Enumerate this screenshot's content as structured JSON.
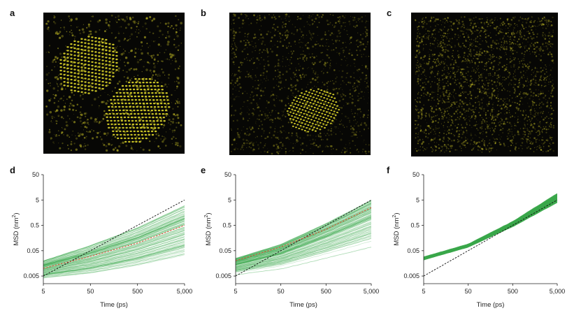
{
  "panel_labels": [
    "a",
    "b",
    "c",
    "d",
    "e",
    "f"
  ],
  "images": [
    {
      "letter": "a",
      "description_color": "#d8cf2a"
    },
    {
      "letter": "b",
      "description_color": "#d8cf2a"
    },
    {
      "letter": "c",
      "description_color": "#d8cf2a"
    }
  ],
  "colors": {
    "particles": "#d4cc28",
    "image_bg": "#070705",
    "trajectories": "#3aa84a",
    "red_dashed": "#e0402a",
    "black_dashed": "#111111"
  },
  "chart_data": [
    {
      "type": "line",
      "panel": "d",
      "xlabel": "Time (ps)",
      "ylabel": "MSD (nm²)",
      "ylabel_text": "MSD (nm",
      "ylabel_sup": "2",
      "ylabel_close": ")",
      "xscale": "log",
      "yscale": "log",
      "xlim": [
        5,
        5000
      ],
      "ylim": [
        0.0025,
        50
      ],
      "xticks": [
        5,
        50,
        500,
        5000
      ],
      "xtick_labels": [
        "5",
        "50",
        "500",
        "5,000"
      ],
      "yticks": [
        0.005,
        0.05,
        0.5,
        5,
        50
      ],
      "ytick_labels": [
        "0.005",
        "0.05",
        "0.5",
        "5",
        "50"
      ],
      "series": [
        {
          "style": "black-dashed",
          "x": [
            5,
            5000
          ],
          "y": [
            0.005,
            5
          ]
        },
        {
          "style": "red-dashed",
          "x": [
            5,
            50,
            500,
            5000
          ],
          "y": [
            0.01,
            0.03,
            0.1,
            0.5
          ]
        },
        {
          "style": "green-bundle-upper",
          "x": [
            5,
            50,
            500,
            5000
          ],
          "y": [
            0.02,
            0.08,
            0.4,
            3
          ]
        },
        {
          "style": "green-bundle-lower",
          "x": [
            5,
            50,
            500,
            5000
          ],
          "y": [
            0.004,
            0.006,
            0.012,
            0.03
          ]
        }
      ]
    },
    {
      "type": "line",
      "panel": "e",
      "xlabel": "Time (ps)",
      "ylabel": "MSD (nm²)",
      "ylabel_text": "MSD (nm",
      "ylabel_sup": "2",
      "ylabel_close": ")",
      "xscale": "log",
      "yscale": "log",
      "xlim": [
        5,
        5000
      ],
      "ylim": [
        0.0025,
        50
      ],
      "xticks": [
        5,
        50,
        500,
        5000
      ],
      "xtick_labels": [
        "5",
        "50",
        "500",
        "5,000"
      ],
      "yticks": [
        0.005,
        0.05,
        0.5,
        5,
        50
      ],
      "ytick_labels": [
        "0.005",
        "0.05",
        "0.5",
        "5",
        "50"
      ],
      "series": [
        {
          "style": "black-dashed",
          "x": [
            5,
            5000
          ],
          "y": [
            0.005,
            5
          ]
        },
        {
          "style": "red-dashed",
          "x": [
            5,
            50,
            500,
            5000
          ],
          "y": [
            0.02,
            0.07,
            0.35,
            2.5
          ]
        },
        {
          "style": "green-bundle-upper",
          "x": [
            5,
            50,
            500,
            5000
          ],
          "y": [
            0.025,
            0.09,
            0.6,
            5
          ]
        },
        {
          "style": "green-bundle-lower",
          "x": [
            5,
            50,
            500,
            5000
          ],
          "y": [
            0.005,
            0.008,
            0.02,
            0.05
          ]
        }
      ]
    },
    {
      "type": "line",
      "panel": "f",
      "xlabel": "Time (ps)",
      "ylabel": "MSD (nm²)",
      "ylabel_text": "MSD (nm",
      "ylabel_sup": "2",
      "ylabel_close": ")",
      "xscale": "log",
      "yscale": "log",
      "xlim": [
        5,
        5000
      ],
      "ylim": [
        0.0025,
        50
      ],
      "xticks": [
        5,
        50,
        500,
        5000
      ],
      "xtick_labels": [
        "5",
        "50",
        "500",
        "5,000"
      ],
      "yticks": [
        0.005,
        0.05,
        0.5,
        5,
        50
      ],
      "ytick_labels": [
        "0.005",
        "0.05",
        "0.5",
        "5",
        "50"
      ],
      "series": [
        {
          "style": "black-dashed",
          "x": [
            5,
            5000
          ],
          "y": [
            0.005,
            5
          ]
        },
        {
          "style": "green-bundle-upper",
          "x": [
            5,
            50,
            500,
            5000
          ],
          "y": [
            0.028,
            0.09,
            0.7,
            9
          ]
        },
        {
          "style": "green-bundle-lower",
          "x": [
            5,
            50,
            500,
            5000
          ],
          "y": [
            0.022,
            0.07,
            0.45,
            4
          ]
        }
      ]
    }
  ]
}
